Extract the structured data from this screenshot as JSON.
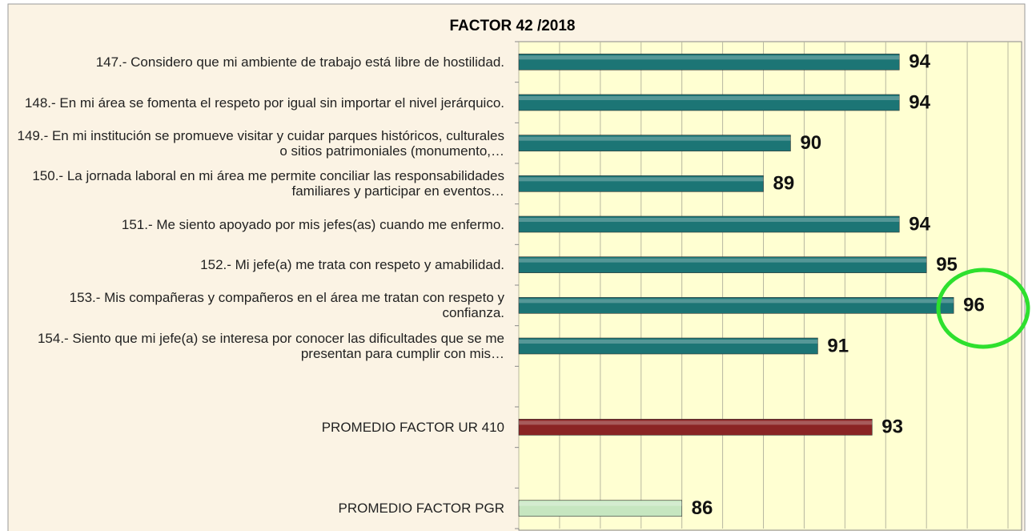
{
  "chart_data": {
    "type": "bar",
    "orientation": "horizontal",
    "title": "FACTOR 42 /2018",
    "categories": [
      "147.- Considero que mi ambiente de trabajo está libre de hostilidad.",
      "148.- En mi área se fomenta el respeto por igual sin importar el nivel jerárquico.",
      "149.- En mi institución se promueve visitar y cuidar parques históricos, culturales o sitios patrimoniales (monumento,…",
      "150.- La jornada laboral en mi área me permite conciliar las responsabilidades familiares y participar en eventos…",
      "151.- Me siento apoyado por mis jefes(as) cuando me enfermo.",
      "152.- Mi jefe(a) me trata con respeto y amabilidad.",
      "153.- Mis compañeras y compañeros en el área me tratan con respeto y confianza.",
      "154.- Siento que mi jefe(a) se interesa por conocer las dificultades que se me presentan para cumplir con mis…",
      null,
      "PROMEDIO FACTOR UR 410",
      null,
      "PROMEDIO FACTOR PGR"
    ],
    "values": [
      94,
      94,
      90,
      89,
      94,
      95,
      96,
      91,
      null,
      93,
      null,
      86
    ],
    "colors": [
      "#1c7575",
      "#1c7575",
      "#1c7575",
      "#1c7575",
      "#1c7575",
      "#1c7575",
      "#1c7575",
      "#1c7575",
      null,
      "#8a2424",
      null,
      "#c6e6c0"
    ],
    "xlim": [
      80,
      98.5
    ],
    "xticks": [
      80,
      81.5,
      83,
      84.5,
      86,
      87.5,
      89,
      90.5,
      92,
      93.5,
      95,
      96.5,
      98
    ],
    "grid": true
  }
}
